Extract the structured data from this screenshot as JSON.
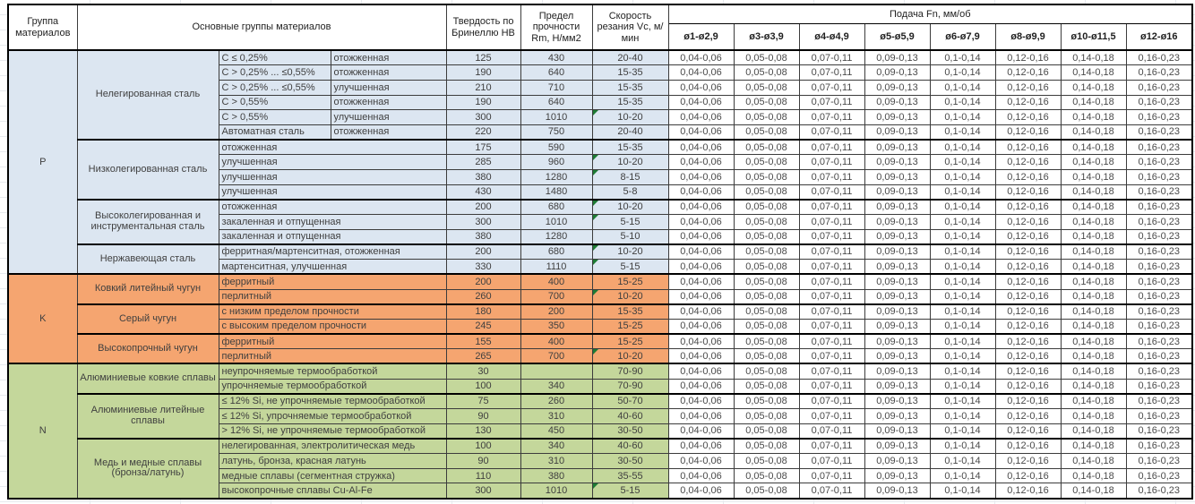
{
  "table": {
    "headers": {
      "group_col": "Группа материалов",
      "material_col": "Основные группы материалов",
      "hardness_col": "Твердость по Бринеллю НВ",
      "strength_col": "Предел прочности Rm, Н/мм2",
      "speed_col": "Скорость резания Vc, м/мин",
      "feed_col": "Подача Fn, мм/об"
    },
    "feed_columns": [
      "ø1-ø2,9",
      "ø3-ø3,9",
      "ø4-ø4,9",
      "ø5-ø5,9",
      "ø6-ø7,9",
      "ø8-ø9,9",
      "ø10-ø11,5",
      "ø12-ø16"
    ],
    "feed_values": [
      "0,04-0,06",
      "0,05-0,08",
      "0,07-0,11",
      "0,09-0,13",
      "0,1-0,14",
      "0,12-0,16",
      "0,14-0,18",
      "0,16-0,23"
    ],
    "colors": {
      "section_p": "#DCE6F1",
      "section_k": "#F5A570",
      "section_n": "#C4D79B",
      "marker": "#1E7B34"
    },
    "sections": [
      {
        "letter": "P",
        "color": "#DCE6F1",
        "groups": [
          {
            "name": "Нелегированная сталь",
            "rows": [
              {
                "sub1": "C ≤ 0,25%",
                "sub2": "отожженная",
                "hb": "125",
                "rm": "430",
                "vc": "20-40"
              },
              {
                "sub1": "C > 0,25% ... ≤0,55%",
                "sub2": "отожженная",
                "hb": "190",
                "rm": "640",
                "vc": "15-35"
              },
              {
                "sub1": "C > 0,25% ... ≤0,55%",
                "sub2": "улучшенная",
                "hb": "210",
                "rm": "710",
                "vc": "15-35"
              },
              {
                "sub1": "C > 0,55%",
                "sub2": "отожженная",
                "hb": "190",
                "rm": "640",
                "vc": "15-35"
              },
              {
                "sub1": "C > 0,55%",
                "sub2": "улучшенная",
                "hb": "300",
                "rm": "1010",
                "vc": "10-20",
                "marker": true
              },
              {
                "sub1": "Автоматная сталь",
                "sub2": "отожженная",
                "hb": "220",
                "rm": "750",
                "vc": "20-40"
              }
            ]
          },
          {
            "name": "Низколегированная сталь",
            "rows": [
              {
                "desc": "отожженная",
                "hb": "175",
                "rm": "590",
                "vc": "15-35"
              },
              {
                "desc": "улучшенная",
                "hb": "285",
                "rm": "960",
                "vc": "10-20",
                "marker": true
              },
              {
                "desc": "улучшенная",
                "hb": "380",
                "rm": "1280",
                "vc": "8-15",
                "marker": true
              },
              {
                "desc": "улучшенная",
                "hb": "430",
                "rm": "1480",
                "vc": "5-8"
              }
            ]
          },
          {
            "name": "Высоколегированная и инструментальная сталь",
            "rows": [
              {
                "desc": "отожженная",
                "hb": "200",
                "rm": "680",
                "vc": "10-20",
                "marker": true
              },
              {
                "desc": "закаленная и отпущенная",
                "hb": "300",
                "rm": "1010",
                "vc": "5-15",
                "marker": true
              },
              {
                "desc": "закаленная и отпущенная",
                "hb": "380",
                "rm": "1280",
                "vc": "5-10"
              }
            ]
          },
          {
            "name": "Нержавеющая сталь",
            "rows": [
              {
                "desc": "ферритная/мартенситная, отожженная",
                "hb": "200",
                "rm": "680",
                "vc": "10-20",
                "marker": true
              },
              {
                "desc": "мартенситная, улучшенная",
                "hb": "330",
                "rm": "1110",
                "vc": "5-15",
                "marker": true
              }
            ]
          }
        ]
      },
      {
        "letter": "K",
        "color": "#F5A570",
        "groups": [
          {
            "name": "Ковкий литейный чугун",
            "rows": [
              {
                "desc": "ферритный",
                "hb": "200",
                "rm": "400",
                "vc": "15-25"
              },
              {
                "desc": "перлитный",
                "hb": "260",
                "rm": "700",
                "vc": "10-20",
                "marker": true
              }
            ]
          },
          {
            "name": "Серый чугун",
            "rows": [
              {
                "desc": "с низким пределом прочности",
                "hb": "180",
                "rm": "200",
                "vc": "15-35"
              },
              {
                "desc": "с высоким пределом прочности",
                "hb": "245",
                "rm": "350",
                "vc": "15-25"
              }
            ]
          },
          {
            "name": "Высокопрочный чугун",
            "rows": [
              {
                "desc": "ферритный",
                "hb": "155",
                "rm": "400",
                "vc": "15-25"
              },
              {
                "desc": "перлитный",
                "hb": "265",
                "rm": "700",
                "vc": "10-20",
                "marker": true
              }
            ]
          }
        ]
      },
      {
        "letter": "N",
        "color": "#C4D79B",
        "groups": [
          {
            "name": "Алюминиевые ковкие сплавы",
            "rows": [
              {
                "desc": "неупрочняемые термообработкой",
                "hb": "30",
                "rm": "",
                "vc": "70-90"
              },
              {
                "desc": "упрочняемые термообработкой",
                "hb": "100",
                "rm": "340",
                "vc": "70-90"
              }
            ]
          },
          {
            "name": "Алюминиевые литейные сплавы",
            "rows": [
              {
                "desc": "≤ 12% Si, не упрочняемые термообработкой",
                "hb": "75",
                "rm": "260",
                "vc": "50-70"
              },
              {
                "desc": "≤ 12% Si, упрочняемые термообработкой",
                "hb": "90",
                "rm": "310",
                "vc": "40-60"
              },
              {
                "desc": "> 12% Si, не упрочняемые термообработкой",
                "hb": "130",
                "rm": "450",
                "vc": "30-50"
              }
            ]
          },
          {
            "name": "Медь и медные сплавы (бронза/латунь)",
            "rows": [
              {
                "desc": "нелегированная, электролитическая медь",
                "hb": "100",
                "rm": "340",
                "vc": "40-60"
              },
              {
                "desc": "латунь, бронза, красная латунь",
                "hb": "90",
                "rm": "310",
                "vc": "30-50"
              },
              {
                "desc": "медные сплавы (сегментная стружка)",
                "hb": "110",
                "rm": "380",
                "vc": "35-55"
              },
              {
                "desc": "высокопрочные сплавы Cu-Al-Fe",
                "hb": "300",
                "rm": "1010",
                "vc": "5-15",
                "marker": true
              }
            ]
          }
        ]
      }
    ]
  }
}
